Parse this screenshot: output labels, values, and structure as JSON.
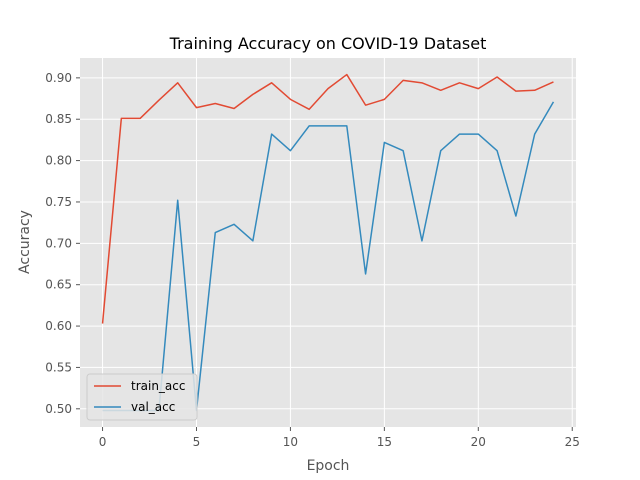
{
  "chart_data": {
    "type": "line",
    "title": "Training Accuracy on COVID-19 Dataset",
    "xlabel": "Epoch",
    "ylabel": "Accuracy",
    "xlim": [
      -1.2,
      25.2
    ],
    "ylim": [
      0.478,
      0.924
    ],
    "xticks": [
      0,
      5,
      10,
      15,
      20,
      25
    ],
    "yticks": [
      0.5,
      0.55,
      0.6,
      0.65,
      0.7,
      0.75,
      0.8,
      0.85,
      0.9
    ],
    "grid": true,
    "legend_position": "lower-left",
    "x": [
      0,
      1,
      2,
      3,
      4,
      5,
      6,
      7,
      8,
      9,
      10,
      11,
      12,
      13,
      14,
      15,
      16,
      17,
      18,
      19,
      20,
      21,
      22,
      23,
      24
    ],
    "series": [
      {
        "name": "train_acc",
        "color": "#E24A33",
        "values": [
          0.603,
          0.851,
          0.851,
          0.873,
          0.894,
          0.864,
          0.869,
          0.863,
          0.88,
          0.894,
          0.874,
          0.862,
          0.887,
          0.904,
          0.867,
          0.874,
          0.897,
          0.894,
          0.885,
          0.894,
          0.887,
          0.901,
          0.884,
          0.885,
          0.895
        ]
      },
      {
        "name": "val_acc",
        "color": "#348ABD",
        "values": [
          0.498,
          0.498,
          0.498,
          0.498,
          0.752,
          0.498,
          0.713,
          0.723,
          0.703,
          0.832,
          0.812,
          0.842,
          0.842,
          0.842,
          0.663,
          0.822,
          0.812,
          0.703,
          0.812,
          0.832,
          0.832,
          0.812,
          0.733,
          0.832,
          0.871
        ]
      }
    ]
  }
}
